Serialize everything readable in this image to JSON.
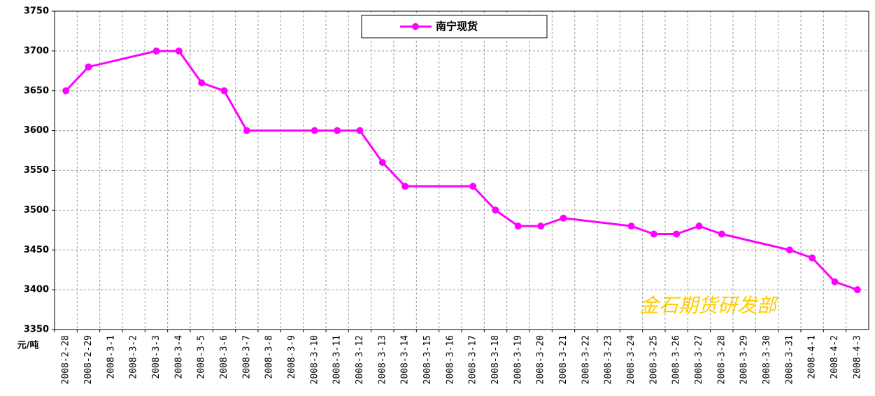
{
  "chart_data": {
    "type": "line",
    "categories": [
      "2008-2-28",
      "2008-2-29",
      "2008-3-1",
      "2008-3-2",
      "2008-3-3",
      "2008-3-4",
      "2008-3-5",
      "2008-3-6",
      "2008-3-7",
      "2008-3-8",
      "2008-3-9",
      "2008-3-10",
      "2008-3-11",
      "2008-3-12",
      "2008-3-13",
      "2008-3-14",
      "2008-3-15",
      "2008-3-16",
      "2008-3-17",
      "2008-3-18",
      "2008-3-19",
      "2008-3-20",
      "2008-3-21",
      "2008-3-22",
      "2008-3-23",
      "2008-3-24",
      "2008-3-25",
      "2008-3-26",
      "2008-3-27",
      "2008-3-28",
      "2008-3-29",
      "2008-3-30",
      "2008-3-31",
      "2008-4-1",
      "2008-4-2",
      "2008-4-3"
    ],
    "series": [
      {
        "name": "南宁现货",
        "color": "#ff00ff",
        "values": [
          3650,
          3680,
          null,
          null,
          3700,
          3700,
          3660,
          3650,
          3600,
          null,
          null,
          3600,
          3600,
          3600,
          3560,
          3530,
          null,
          null,
          3530,
          3500,
          3480,
          3480,
          3490,
          null,
          null,
          3480,
          3470,
          3470,
          3480,
          3470,
          null,
          null,
          3450,
          3440,
          3410,
          3400
        ]
      }
    ],
    "ylim": [
      3350,
      3750
    ],
    "yticks": [
      3350,
      3400,
      3450,
      3500,
      3550,
      3600,
      3650,
      3700,
      3750
    ],
    "grid": true,
    "legend": "top",
    "unit_label": "元/吨",
    "watermark": "金石期货研发部"
  }
}
